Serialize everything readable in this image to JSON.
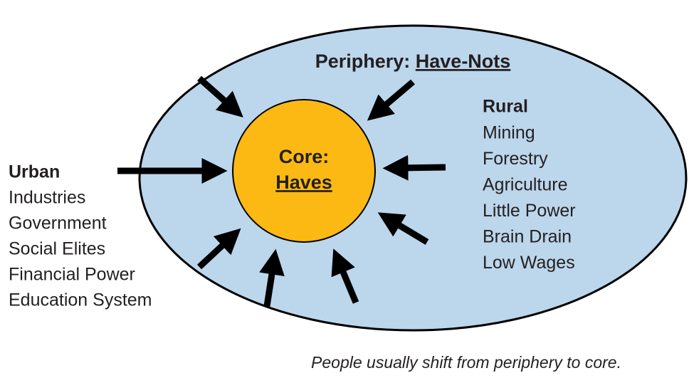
{
  "periphery": {
    "label": "Periphery:",
    "title": "Have-Nots"
  },
  "core": {
    "label": "Core:",
    "title": "Haves"
  },
  "urban": {
    "heading": "Urban",
    "items": [
      "Industries",
      "Government",
      "Social Elites",
      "Financial Power",
      "Education System"
    ]
  },
  "rural": {
    "heading": "Rural",
    "items": [
      "Mining",
      "Forestry",
      "Agriculture",
      "Little Power",
      "Brain Drain",
      "Low Wages"
    ]
  },
  "caption": "People usually shift from periphery to core."
}
